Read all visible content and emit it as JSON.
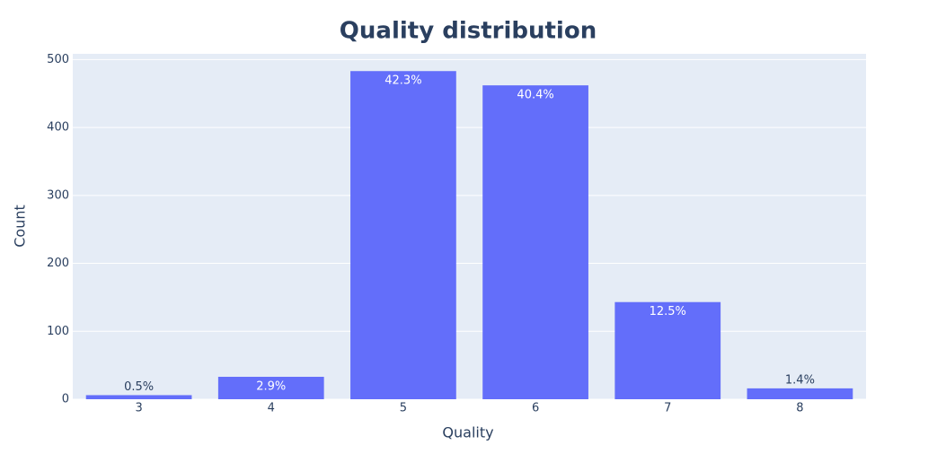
{
  "chart_data": {
    "type": "bar",
    "title": "Quality distribution",
    "x_label": "Quality",
    "y_label": "Count",
    "categories": [
      "3",
      "4",
      "5",
      "6",
      "7",
      "8"
    ],
    "values": [
      6,
      33,
      483,
      462,
      143,
      16
    ],
    "bar_labels": [
      "0.5%",
      "2.9%",
      "42.3%",
      "40.4%",
      "12.5%",
      "1.4%"
    ],
    "color": "#636efa",
    "ylim": [
      0,
      508.4
    ],
    "yticks": [
      0,
      100,
      200,
      300,
      400,
      500
    ],
    "grid": true
  }
}
